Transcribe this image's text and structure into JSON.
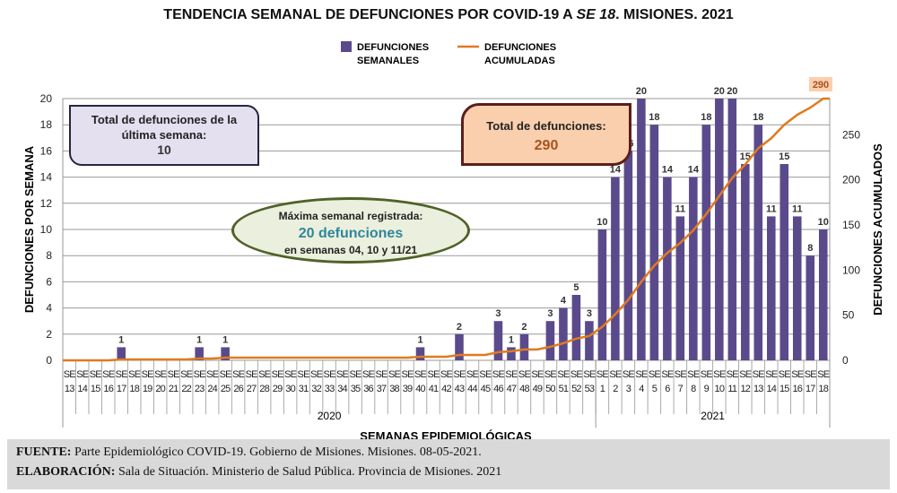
{
  "chart_data": {
    "type": "bar+line",
    "title_parts": [
      "TENDENCIA SEMANAL DE DEFUNCIONES POR COVID-19 A ",
      "SE 18",
      ". MISIONES. 2021"
    ],
    "legend": [
      "DEFUNCIONES SEMANALES",
      "DEFUNCIONES ACUMULADAS"
    ],
    "legend_lines": [
      [
        "DEFUNCIONES",
        "SEMANALES"
      ],
      [
        "DEFUNCIONES",
        "ACUMULADAS"
      ]
    ],
    "xlabel": "SEMANAS EPIDEMIOLÓGICAS",
    "ylabel_left": "DEFUNCIONES POR SEMANA",
    "ylabel_right": "DEFUNCIONES ACUMULADOS",
    "ylim_left": [
      0,
      20
    ],
    "yticks_left": [
      0,
      2,
      4,
      6,
      8,
      10,
      12,
      14,
      16,
      18,
      20
    ],
    "ylim_right": [
      0,
      290
    ],
    "yticks_right": [
      0,
      50,
      100,
      150,
      200,
      250
    ],
    "years": [
      {
        "label": "2020",
        "weeks": [
          13,
          14,
          15,
          16,
          17,
          18,
          19,
          20,
          21,
          22,
          23,
          24,
          25,
          26,
          27,
          28,
          29,
          30,
          31,
          32,
          33,
          34,
          35,
          36,
          37,
          38,
          39,
          40,
          41,
          42,
          43,
          44,
          45,
          46,
          47,
          48,
          49,
          50,
          51,
          52,
          53
        ]
      },
      {
        "label": "2021",
        "weeks": [
          1,
          2,
          3,
          4,
          5,
          6,
          7,
          8,
          9,
          10,
          11,
          12,
          13,
          14,
          15,
          16,
          17,
          18
        ]
      }
    ],
    "week_prefix": "SE",
    "weekly": [
      0,
      0,
      0,
      0,
      1,
      0,
      0,
      0,
      0,
      0,
      1,
      0,
      1,
      0,
      0,
      0,
      0,
      0,
      0,
      0,
      0,
      0,
      0,
      0,
      0,
      0,
      0,
      1,
      0,
      0,
      2,
      0,
      0,
      3,
      1,
      2,
      0,
      3,
      4,
      5,
      3,
      10,
      14,
      16,
      20,
      18,
      14,
      11,
      14,
      18,
      20,
      20,
      15,
      18,
      11,
      15,
      11,
      8,
      10
    ],
    "final_cumulative_label": "290",
    "colors": {
      "bar": "#5b4a8b",
      "line": "#e07a1f"
    }
  },
  "boxes": {
    "last_week": {
      "line1": "Total de defunciones de la",
      "line2": "última semana:",
      "value": "10"
    },
    "total": {
      "line1": "Total de defunciones:",
      "value": "290"
    },
    "max": {
      "line1": "Máxima semanal registrada:",
      "value": "20 defunciones",
      "line3": "en semanas 04, 10 y 11/21"
    }
  },
  "footer": {
    "source_label": "FUENTE:",
    "source_text": " Parte Epidemiológico COVID-19. Gobierno de Misiones. Misiones. 08-05-2021.",
    "elab_label": "ELABORACIÓN:",
    "elab_text": " Sala de Situación. Ministerio de Salud Pública. Provincia de Misiones. 2021"
  }
}
